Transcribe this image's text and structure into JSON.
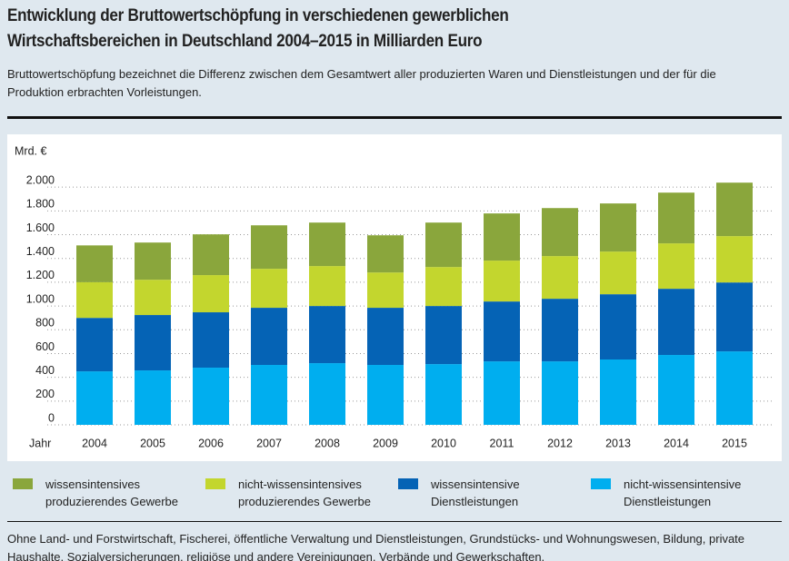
{
  "chart_data": {
    "type": "stacked_bar",
    "title": "Entwicklung der Bruttowertschöpfung in verschiedenen gewerblichen Wirtschaftsbereichen in Deutschland 2004–2015 in Milliarden Euro",
    "subtitle": "Bruttowertschöpfung bezeichnet die Differenz zwischen dem Gesamtwert aller produzierten Waren und Dienstleistungen und der für die Produktion erbrachten Vorleistungen.",
    "y_label": "Mrd. €",
    "x_label": "Jahr",
    "categories": [
      "2004",
      "2005",
      "2006",
      "2007",
      "2008",
      "2009",
      "2010",
      "2011",
      "2012",
      "2013",
      "2014",
      "2015"
    ],
    "series": [
      {
        "name": "wissensintensives produzierendes Gewerbe",
        "color": "#8aa63c",
        "values": [
          310,
          313,
          343,
          366,
          366,
          313,
          374,
          397,
          404,
          405,
          427,
          450
        ]
      },
      {
        "name": "nicht-wissensintensives produzierendes Gewerbe",
        "color": "#c3d62e",
        "values": [
          300,
          297,
          313,
          328,
          336,
          297,
          328,
          344,
          359,
          359,
          382,
          390
        ]
      },
      {
        "name": "wissensintensive Dienstleistungen",
        "color": "#0563b5",
        "values": [
          450,
          466,
          466,
          481,
          481,
          481,
          489,
          504,
          527,
          549,
          557,
          580
        ]
      },
      {
        "name": "nicht-wissensintensive Dienstleistungen",
        "color": "#00aeef",
        "values": [
          450,
          458,
          481,
          504,
          519,
          504,
          511,
          534,
          534,
          550,
          588,
          618
        ]
      }
    ],
    "ylim": [
      0,
      2200
    ],
    "yticks": [
      0,
      200,
      400,
      600,
      800,
      {
        "value": 1000,
        "label": "1.000"
      },
      {
        "value": 1200,
        "label": "1.200"
      },
      {
        "value": 1400,
        "label": "1.400"
      },
      {
        "value": 1600,
        "label": "1.600"
      },
      {
        "value": 1800,
        "label": "1.800"
      },
      {
        "value": 2000,
        "label": "2.000"
      }
    ],
    "grid": true,
    "footnote": "Ohne Land- und Forstwirtschaft, Fischerei, öffentliche Verwaltung und Dienstleistungen, Grundstücks- und Wohnungswesen, Bildung, private Haushalte, Sozialversicherungen, religiöse und andere Vereinigungen, Verbände und Gewerkschaften."
  }
}
